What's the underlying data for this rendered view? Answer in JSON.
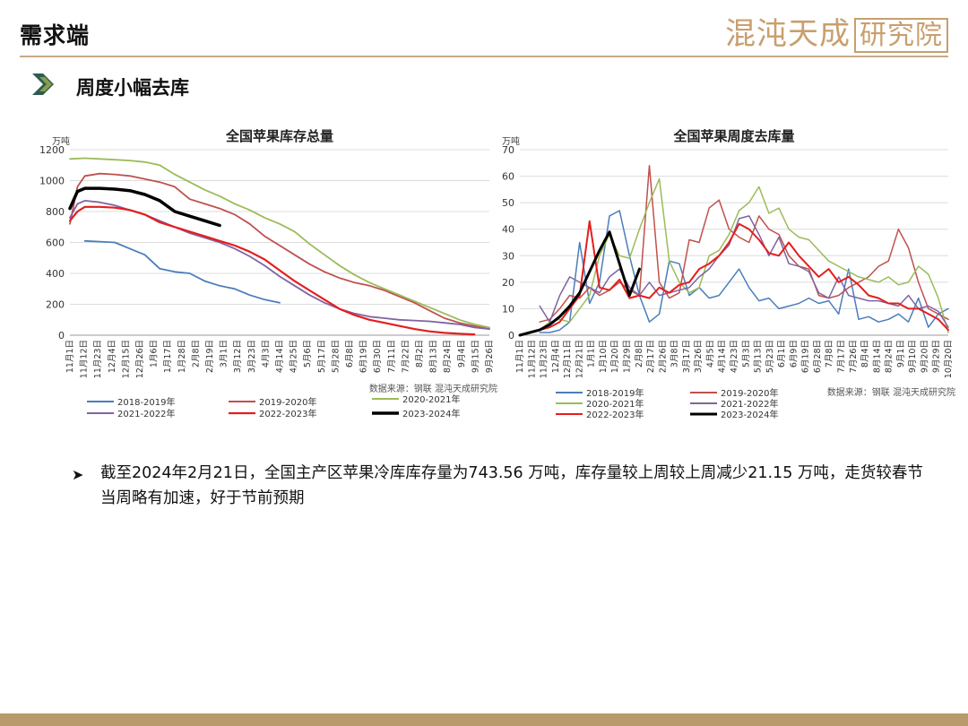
{
  "header": {
    "title": "需求端",
    "logo_text": "混沌天成",
    "logo_boxed": "研究院"
  },
  "section": {
    "title": "周度小幅去库"
  },
  "bullet": {
    "text": "截至2024年2月21日，全国主产区苹果冷库库存量为743.56 万吨，库存量较上周较上周减少21.15 万吨，走货较春节当周略有加速，好于节前预期"
  },
  "colors": {
    "accent": "#c7a98a",
    "footer": "#b99a6b",
    "arrow_dark": "#2f5c4e",
    "arrow_light": "#8a9f4c"
  },
  "icons": {
    "section_marker": "double-chevron-icon",
    "bullet": "arrow-bullet-icon"
  },
  "chart_data": [
    {
      "type": "line",
      "title": "全国苹果库存总量",
      "ylabel": "万吨",
      "xlabel": "",
      "ylim": [
        0,
        1200
      ],
      "yticks": [
        0,
        200,
        400,
        600,
        800,
        1000,
        1200
      ],
      "x_labels": [
        "11月1日",
        "11月12日",
        "11月23日",
        "12月4日",
        "12月15日",
        "12月26日",
        "1月6日",
        "1月17日",
        "1月28日",
        "2月8日",
        "2月19日",
        "3月1日",
        "3月12日",
        "3月23日",
        "4月3日",
        "4月14日",
        "4月25日",
        "5月6日",
        "5月17日",
        "5月28日",
        "6月8日",
        "6月19日",
        "6月30日",
        "7月11日",
        "7月22日",
        "8月2日",
        "8月13日",
        "8月24日",
        "9月4日",
        "9月15日",
        "9月26日"
      ],
      "grid": true,
      "legend_position": "bottom",
      "source": "数据来源：钢联  混沌天成研究院",
      "series": [
        {
          "name": "2018-2019年",
          "color": "#4a7ebb",
          "width": 1.8,
          "x": [
            2,
            4,
            6,
            8,
            10,
            12,
            14,
            16,
            18,
            20,
            22,
            24,
            26,
            28
          ],
          "y": [
            610,
            605,
            600,
            560,
            520,
            430,
            410,
            400,
            350,
            320,
            300,
            260,
            230,
            210
          ]
        },
        {
          "name": "2019-2020年",
          "color": "#c0504d",
          "width": 1.8,
          "x": [
            0,
            1,
            2,
            4,
            6,
            8,
            10,
            12,
            14,
            16,
            18,
            20,
            22,
            24,
            26,
            28,
            30,
            32,
            34,
            36,
            38,
            40,
            42,
            44,
            46,
            48,
            50,
            52,
            54,
            56
          ],
          "y": [
            720,
            960,
            1030,
            1045,
            1040,
            1030,
            1010,
            990,
            960,
            880,
            850,
            820,
            780,
            720,
            640,
            580,
            520,
            460,
            410,
            370,
            340,
            320,
            290,
            250,
            210,
            160,
            110,
            80,
            60,
            40
          ]
        },
        {
          "name": "2020-2021年",
          "color": "#9bbb59",
          "width": 1.8,
          "x": [
            0,
            2,
            4,
            6,
            8,
            10,
            12,
            14,
            16,
            18,
            20,
            22,
            24,
            26,
            28,
            30,
            32,
            34,
            36,
            38,
            40,
            42,
            44,
            46,
            48,
            50,
            52,
            54,
            56
          ],
          "y": [
            1140,
            1145,
            1140,
            1135,
            1130,
            1120,
            1100,
            1040,
            990,
            940,
            900,
            850,
            810,
            760,
            720,
            670,
            590,
            520,
            450,
            390,
            340,
            300,
            260,
            220,
            180,
            140,
            100,
            70,
            50
          ]
        },
        {
          "name": "2021-2022年",
          "color": "#8064a2",
          "width": 1.8,
          "x": [
            0,
            1,
            2,
            4,
            6,
            8,
            10,
            12,
            14,
            16,
            18,
            20,
            22,
            24,
            26,
            28,
            30,
            32,
            34,
            36,
            38,
            40,
            42,
            44,
            46,
            48,
            50,
            52,
            54,
            56
          ],
          "y": [
            760,
            850,
            870,
            860,
            840,
            810,
            780,
            740,
            700,
            660,
            630,
            600,
            560,
            510,
            450,
            380,
            320,
            260,
            210,
            170,
            140,
            120,
            110,
            100,
            95,
            90,
            80,
            70,
            50,
            40
          ]
        },
        {
          "name": "2022-2023年",
          "color": "#e41e1e",
          "width": 2.2,
          "x": [
            0,
            1,
            2,
            4,
            6,
            8,
            10,
            12,
            14,
            16,
            18,
            20,
            22,
            24,
            26,
            28,
            30,
            32,
            34,
            36,
            38,
            40,
            42,
            44,
            46,
            48,
            50,
            52,
            54
          ],
          "y": [
            740,
            800,
            830,
            830,
            825,
            810,
            780,
            730,
            700,
            670,
            640,
            610,
            580,
            540,
            490,
            420,
            350,
            290,
            230,
            170,
            130,
            100,
            80,
            60,
            40,
            25,
            15,
            10,
            5
          ]
        },
        {
          "name": "2023-2024年",
          "color": "#000000",
          "width": 3.5,
          "x": [
            0,
            1,
            2,
            4,
            6,
            8,
            10,
            12,
            14,
            16,
            18,
            20
          ],
          "y": [
            820,
            930,
            950,
            950,
            945,
            935,
            910,
            870,
            800,
            770,
            740,
            710
          ]
        }
      ]
    },
    {
      "type": "line",
      "title": "全国苹果周度去库量",
      "ylabel": "万吨",
      "xlabel": "",
      "ylim": [
        0,
        70
      ],
      "yticks": [
        0,
        10,
        20,
        30,
        40,
        50,
        60,
        70
      ],
      "x_labels": [
        "11月1日",
        "11月12日",
        "11月23日",
        "12月4日",
        "12月11日",
        "12月21日",
        "1月1日",
        "1月10日",
        "1月20日",
        "1月29日",
        "2月8日",
        "2月17日",
        "2月26日",
        "3月8日",
        "3月17日",
        "3月26日",
        "4月5日",
        "4月14日",
        "4月23日",
        "5月3日",
        "5月13日",
        "5月23日",
        "6月1日",
        "6月9日",
        "6月19日",
        "6月28日",
        "7月8日",
        "7月17日",
        "7月26日",
        "8月4日",
        "8月14日",
        "8月24日",
        "9月1日",
        "9月10日",
        "9月20日",
        "9月29日",
        "10月20日"
      ],
      "grid": true,
      "legend_position": "bottom",
      "source": "数据来源：钢联  混沌天成研究院",
      "series": [
        {
          "name": "2018-2019年",
          "color": "#4a7ebb",
          "width": 1.5,
          "x": [
            2,
            3,
            4,
            5,
            6,
            7,
            8,
            9,
            10,
            11,
            12,
            13,
            14,
            15,
            16,
            17,
            18,
            19,
            20,
            21,
            22,
            23,
            24,
            25,
            26,
            27,
            28,
            29,
            30,
            31,
            32,
            33,
            34,
            35,
            36,
            37,
            38,
            39,
            40,
            41,
            42,
            43
          ],
          "y": [
            1,
            1,
            2,
            5,
            35,
            12,
            20,
            45,
            47,
            30,
            15,
            5,
            8,
            28,
            27,
            15,
            18,
            14,
            15,
            20,
            25,
            18,
            13,
            14,
            10,
            11,
            12,
            14,
            12,
            13,
            8,
            25,
            6,
            7,
            5,
            6,
            8,
            5,
            14,
            3,
            8,
            10
          ]
        },
        {
          "name": "2019-2020年",
          "color": "#c0504d",
          "width": 1.5,
          "x": [
            2,
            3,
            4,
            5,
            6,
            7,
            8,
            9,
            10,
            11,
            12,
            13,
            14,
            15,
            16,
            17,
            18,
            19,
            20,
            21,
            22,
            23,
            24,
            25,
            26,
            27,
            28,
            29,
            30,
            31,
            32,
            33,
            34,
            35,
            36,
            37,
            38,
            39,
            40,
            41,
            42,
            43
          ],
          "y": [
            5,
            6,
            10,
            15,
            14,
            18,
            15,
            17,
            20,
            17,
            15,
            64,
            20,
            14,
            16,
            36,
            35,
            48,
            51,
            40,
            37,
            35,
            45,
            40,
            38,
            30,
            26,
            25,
            15,
            14,
            15,
            18,
            20,
            22,
            26,
            28,
            40,
            33,
            20,
            10,
            8,
            6
          ]
        },
        {
          "name": "2020-2021年",
          "color": "#9bbb59",
          "width": 1.5,
          "x": [
            2,
            3,
            4,
            5,
            6,
            7,
            8,
            9,
            10,
            11,
            12,
            13,
            14,
            15,
            16,
            17,
            18,
            19,
            20,
            21,
            22,
            23,
            24,
            25,
            26,
            27,
            28,
            29,
            30,
            31,
            32,
            33,
            34,
            35,
            36,
            37,
            38,
            39,
            40,
            41,
            42,
            43
          ],
          "y": [
            2,
            5,
            6,
            5,
            10,
            15,
            30,
            38,
            30,
            29,
            40,
            50,
            59,
            28,
            20,
            16,
            18,
            30,
            32,
            38,
            47,
            50,
            56,
            46,
            48,
            40,
            37,
            36,
            32,
            28,
            26,
            24,
            22,
            21,
            20,
            22,
            19,
            20,
            26,
            23,
            14,
            1
          ]
        },
        {
          "name": "2021-2022年",
          "color": "#8064a2",
          "width": 1.5,
          "x": [
            2,
            3,
            4,
            5,
            6,
            7,
            8,
            9,
            10,
            11,
            12,
            13,
            14,
            15,
            16,
            17,
            18,
            19,
            20,
            21,
            22,
            23,
            24,
            25,
            26,
            27,
            28,
            29,
            30,
            31,
            32,
            33,
            34,
            35,
            36,
            37,
            38,
            39,
            40,
            41,
            42,
            43
          ],
          "y": [
            11,
            5,
            15,
            22,
            20,
            18,
            16,
            22,
            25,
            18,
            15,
            20,
            15,
            16,
            17,
            18,
            22,
            25,
            30,
            34,
            44,
            45,
            38,
            30,
            37,
            27,
            26,
            24,
            16,
            14,
            22,
            15,
            14,
            13,
            13,
            12,
            11,
            15,
            10,
            11,
            9,
            3
          ]
        },
        {
          "name": "2022-2023年",
          "color": "#e41e1e",
          "width": 2.0,
          "x": [
            2,
            3,
            4,
            5,
            6,
            7,
            8,
            9,
            10,
            11,
            12,
            13,
            14,
            15,
            16,
            17,
            18,
            19,
            20,
            21,
            22,
            23,
            24,
            25,
            26,
            27,
            28,
            29,
            30,
            31,
            32,
            33,
            34,
            35,
            36,
            37,
            38,
            39,
            40,
            41,
            42,
            43
          ],
          "y": [
            2,
            3,
            5,
            10,
            15,
            43,
            18,
            17,
            21,
            14,
            15,
            14,
            18,
            16,
            19,
            20,
            25,
            27,
            30,
            35,
            42,
            40,
            36,
            31,
            30,
            35,
            30,
            26,
            22,
            25,
            20,
            22,
            19,
            15,
            14,
            12,
            12,
            10,
            10,
            8,
            6,
            2
          ]
        },
        {
          "name": "2023-2024年",
          "color": "#000000",
          "width": 3.0,
          "x": [
            0,
            1,
            2,
            3,
            4,
            5,
            6,
            7,
            8,
            9,
            10,
            11,
            12
          ],
          "y": [
            0,
            1,
            2,
            4,
            7,
            11,
            16,
            24,
            32,
            39,
            27,
            15,
            25
          ]
        }
      ]
    }
  ]
}
